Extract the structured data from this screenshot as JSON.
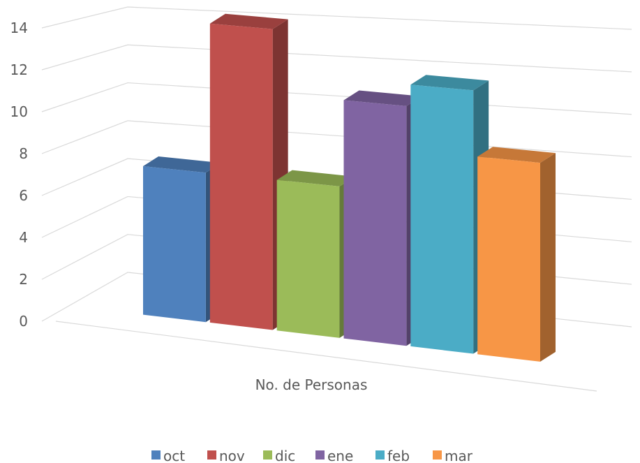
{
  "chart_data": {
    "type": "bar",
    "style": "3d-column",
    "categories": [
      "No. de Personas"
    ],
    "series": [
      {
        "name": "oct",
        "values": [
          7
        ],
        "color": "#4F81BD"
      },
      {
        "name": "nov",
        "values": [
          14
        ],
        "color": "#C0504D"
      },
      {
        "name": "dic",
        "values": [
          7
        ],
        "color": "#9BBB59"
      },
      {
        "name": "ene",
        "values": [
          11
        ],
        "color": "#8064A2"
      },
      {
        "name": "feb",
        "values": [
          12
        ],
        "color": "#4BACC6"
      },
      {
        "name": "mar",
        "values": [
          9
        ],
        "color": "#F79646"
      }
    ],
    "yticks": [
      "0",
      "2",
      "4",
      "6",
      "8",
      "10",
      "12",
      "14"
    ],
    "ylim": [
      0,
      14
    ],
    "grid": true,
    "legend": "bottom"
  }
}
